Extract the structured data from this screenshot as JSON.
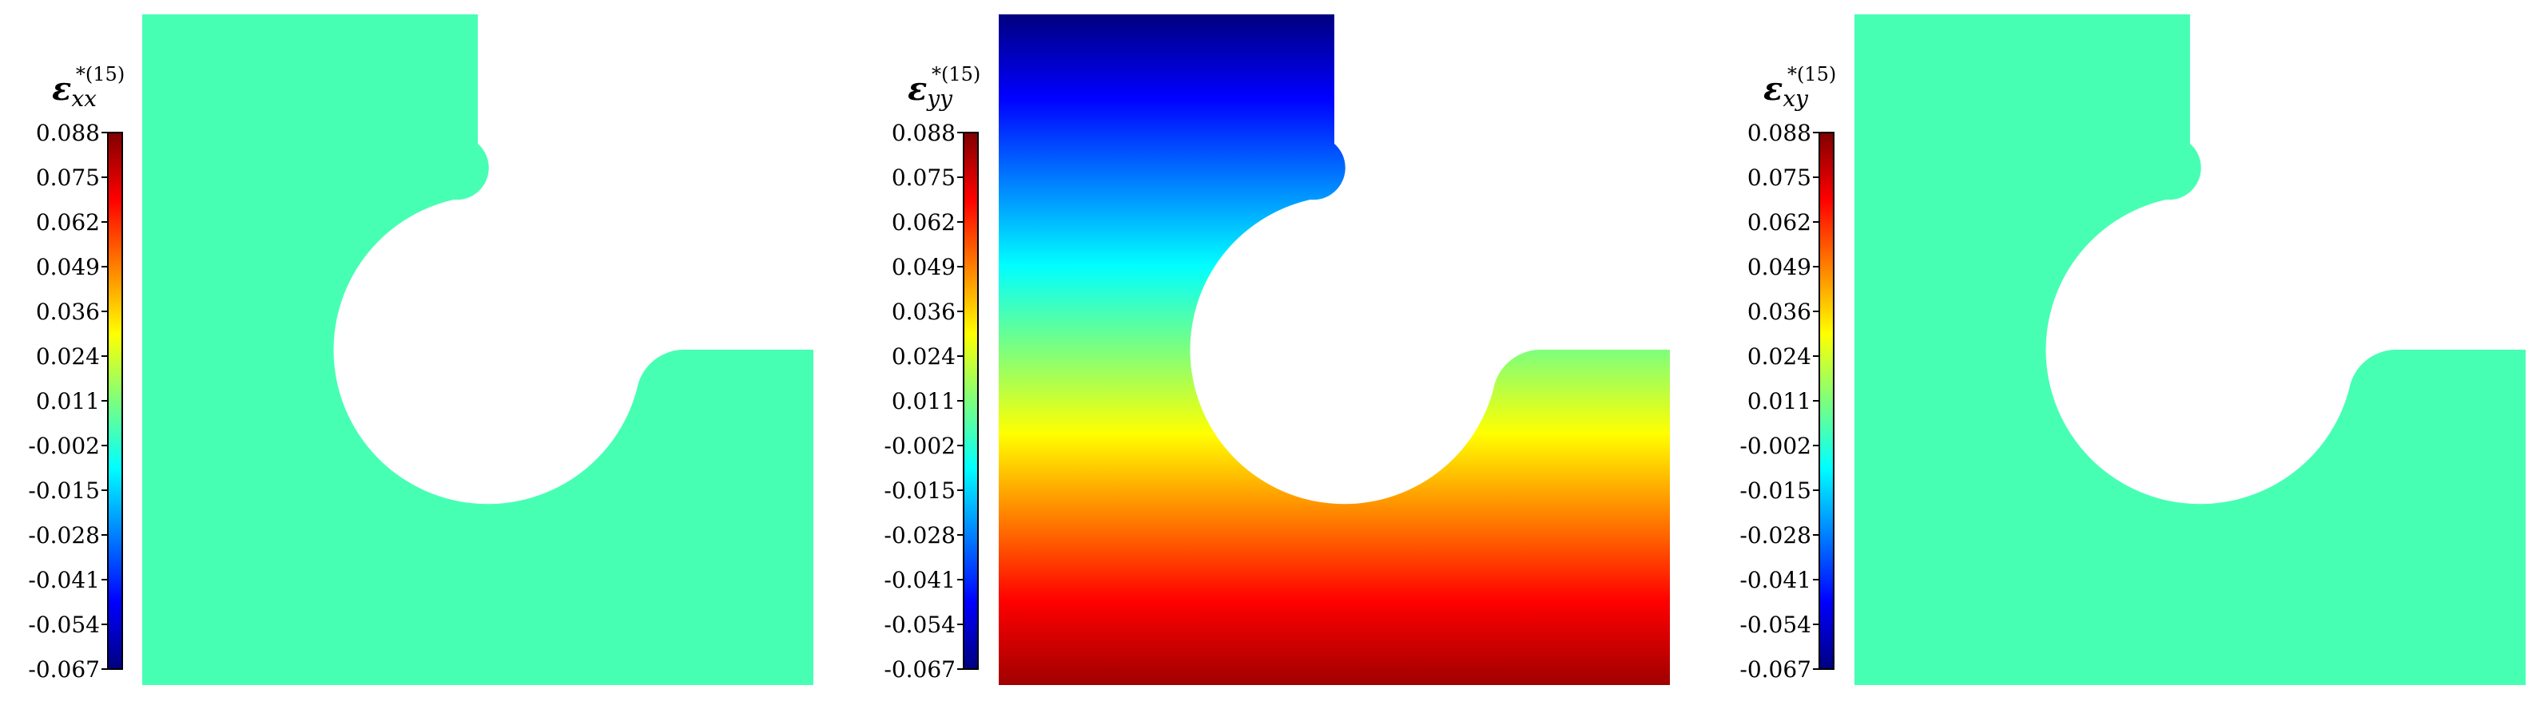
{
  "chart_data": [
    {
      "type": "heatmap",
      "field": "uniform",
      "colorbar_label": {
        "symbol": "ε",
        "subscript": "xx",
        "superscript": "*(15)"
      },
      "colorbar_ticks": [
        "0.088",
        "0.075",
        "0.062",
        "0.049",
        "0.036",
        "0.024",
        "0.011",
        "-0.002",
        "-0.015",
        "-0.028",
        "-0.041",
        "-0.054",
        "-0.067"
      ],
      "clim": [
        -0.067,
        0.088
      ],
      "value": 0.0
    },
    {
      "type": "heatmap",
      "field": "vertical-gradient",
      "colorbar_label": {
        "symbol": "ε",
        "subscript": "yy",
        "superscript": "*(15)"
      },
      "colorbar_ticks": [
        "0.088",
        "0.075",
        "0.062",
        "0.049",
        "0.036",
        "0.024",
        "0.011",
        "-0.002",
        "-0.015",
        "-0.028",
        "-0.041",
        "-0.054",
        "-0.067"
      ],
      "clim": [
        -0.067,
        0.088
      ],
      "value_top": -0.067,
      "value_bottom": 0.088
    },
    {
      "type": "heatmap",
      "field": "uniform",
      "colorbar_label": {
        "symbol": "ε",
        "subscript": "xy",
        "superscript": "*(15)"
      },
      "colorbar_ticks": [
        "0.088",
        "0.075",
        "0.062",
        "0.049",
        "0.036",
        "0.024",
        "0.011",
        "-0.002",
        "-0.015",
        "-0.028",
        "-0.041",
        "-0.054",
        "-0.067"
      ],
      "clim": [
        -0.067,
        0.088
      ],
      "value": 0.0
    }
  ],
  "colormap": "jet"
}
